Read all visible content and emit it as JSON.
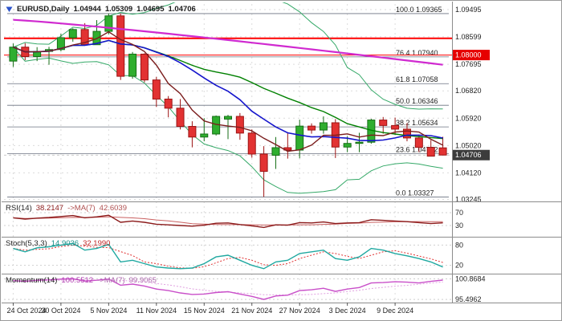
{
  "window": {
    "symbol": "EURUSD,Daily",
    "open": "1.04944",
    "high": "1.05309",
    "low": "1.04695",
    "close": "1.04706"
  },
  "colors": {
    "up": "#2fae2f",
    "up_border": "#156e15",
    "down": "#e23232",
    "down_border": "#9c1414",
    "sma_fast": "#7b1d1d",
    "sma_mid": "#1515cc",
    "sma_slow": "#008000",
    "band": "#35a968",
    "long_ma": "#d02ad0",
    "hline": "#ff0000",
    "fib": "#6b7280",
    "grid": "#dcdcdc",
    "axis_text": "#1f1f1f",
    "badge_price": "#3c3c3c",
    "badge_level": "#e60000",
    "rsi": "#8b1a1a",
    "rsi_ma": "#c96060",
    "stoch_k": "#1fa8a0",
    "stoch_d": "#e03232",
    "momentum": "#c94fc9",
    "momentum_ma": "#e0a0e0",
    "separator": "#8c8c8c"
  },
  "chart_data": [
    {
      "type": "candlestick",
      "title": "EURUSD Daily",
      "y_range": [
        1.0318,
        1.0968
      ],
      "y_ticks": [
        1.09495,
        1.08599,
        1.07695,
        1.0682,
        1.0592,
        1.0502,
        1.0412,
        1.03245
      ],
      "x_ticks": [
        {
          "i": 0,
          "label": "24 Oct 2024"
        },
        {
          "i": 4,
          "label": "30 Oct 2024"
        },
        {
          "i": 8,
          "label": "5 Nov 2024"
        },
        {
          "i": 12,
          "label": "11 Nov 2024"
        },
        {
          "i": 16,
          "label": "15 Nov 2024"
        },
        {
          "i": 20,
          "label": "21 Nov 2024"
        },
        {
          "i": 24,
          "label": "27 Nov 2024"
        },
        {
          "i": 28,
          "label": "3 Dec 2024"
        },
        {
          "i": 32,
          "label": "9 Dec 2024"
        }
      ],
      "candles": [
        [
          1.078,
          1.0838,
          1.0761,
          1.0826
        ],
        [
          1.0826,
          1.0839,
          1.0783,
          1.0795
        ],
        [
          1.0795,
          1.0826,
          1.078,
          1.0812
        ],
        [
          1.0812,
          1.0827,
          1.0768,
          1.0818
        ],
        [
          1.0818,
          1.087,
          1.0812,
          1.0857
        ],
        [
          1.0857,
          1.0888,
          1.0844,
          1.0884
        ],
        [
          1.0884,
          1.0905,
          1.0832,
          1.0834
        ],
        [
          1.0834,
          1.0915,
          1.0834,
          1.0878
        ],
        [
          1.0878,
          1.0937,
          1.0868,
          1.0929
        ],
        [
          1.0929,
          1.0937,
          1.0718,
          1.073
        ],
        [
          1.073,
          1.081,
          1.0722,
          1.0803
        ],
        [
          1.0803,
          1.0806,
          1.071,
          1.0718
        ],
        [
          1.0718,
          1.0728,
          1.0629,
          1.0655
        ],
        [
          1.0655,
          1.0665,
          1.0595,
          1.0625
        ],
        [
          1.0625,
          1.0655,
          1.0555,
          1.0565
        ],
        [
          1.0565,
          1.0582,
          1.0496,
          1.053
        ],
        [
          1.053,
          1.0592,
          1.0516,
          1.054
        ],
        [
          1.054,
          1.0601,
          1.0535,
          1.0598
        ],
        [
          1.0589,
          1.0603,
          1.0523,
          1.0598
        ],
        [
          1.0598,
          1.0609,
          1.0521,
          1.0543
        ],
        [
          1.0543,
          1.0555,
          1.0462,
          1.0474
        ],
        [
          1.0474,
          1.05,
          1.0333,
          1.0417
        ],
        [
          1.047,
          1.053,
          1.0425,
          1.0495
        ],
        [
          1.0495,
          1.0545,
          1.0459,
          1.0487
        ],
        [
          1.0487,
          1.0587,
          1.046,
          1.0566
        ],
        [
          1.0566,
          1.0575,
          1.0541,
          1.0553
        ],
        [
          1.0553,
          1.0598,
          1.0541,
          1.0577
        ],
        [
          1.0577,
          1.0589,
          1.0461,
          1.0497
        ],
        [
          1.0497,
          1.0533,
          1.048,
          1.0509
        ],
        [
          1.0509,
          1.0544,
          1.048,
          1.0513
        ],
        [
          1.0513,
          1.059,
          1.0508,
          1.0586
        ],
        [
          1.0586,
          1.0596,
          1.0541,
          1.0568
        ],
        [
          1.0568,
          1.0594,
          1.0537,
          1.0556
        ],
        [
          1.0556,
          1.0576,
          1.0516,
          1.0527
        ],
        [
          1.0527,
          1.0538,
          1.048,
          1.0496
        ],
        [
          1.0496,
          1.052,
          1.0466,
          1.0467
        ],
        [
          1.04944,
          1.05309,
          1.04695,
          1.04706
        ]
      ],
      "fib_levels": [
        {
          "pct": "100.0",
          "price": 1.09365
        },
        {
          "pct": "76.4",
          "price": 1.0794
        },
        {
          "pct": "61.8",
          "price": 1.07058
        },
        {
          "pct": "50.0",
          "price": 1.06346
        },
        {
          "pct": "38.2",
          "price": 1.05634
        },
        {
          "pct": "23.6",
          "price": 1.04752
        },
        {
          "pct": "0.0",
          "price": 1.03327
        }
      ],
      "hlines": [
        {
          "price": 1.0855,
          "width": 2
        },
        {
          "price": 1.08,
          "width": 1
        }
      ],
      "badges": [
        {
          "text": "1.08000",
          "price": 1.08,
          "color_key": "badge_level"
        },
        {
          "text": "1.04706",
          "price": 1.04706,
          "color_key": "badge_price"
        }
      ],
      "overlays": {
        "sma_fast_period": 5,
        "sma_mid_period": 12,
        "sma_slow_period": 20,
        "bollinger": {
          "period": 20,
          "dev": 2
        },
        "long_ma": {
          "start": 1.0916,
          "end": 1.0768,
          "exp": 1.15
        }
      },
      "current_price": 1.04706
    },
    {
      "type": "line",
      "name": "RSI(14)",
      "value": "38.2147",
      "ma_label": "->MA(7)",
      "ma_value": "42.6039",
      "ma_period": 7,
      "range": [
        0,
        100
      ],
      "levels": [
        {
          "v": 70,
          "label": "70"
        },
        {
          "v": 30,
          "label": "30"
        }
      ],
      "values": [
        54,
        50,
        53,
        55,
        58,
        61,
        54,
        57,
        62,
        40,
        44,
        40,
        34,
        32,
        30,
        28,
        31,
        37,
        38,
        33,
        29,
        24,
        32,
        31,
        39,
        38,
        41,
        36,
        38,
        39,
        48,
        46,
        44,
        42,
        39,
        36,
        38.21
      ]
    },
    {
      "type": "line",
      "name": "Stoch(5,3,3)",
      "value": "14.9036",
      "value2": "32.1990",
      "signal_period": 3,
      "range": [
        0,
        100
      ],
      "levels": [
        {
          "v": 80,
          "label": "80"
        },
        {
          "v": 20,
          "label": "20"
        }
      ],
      "values": [
        70,
        60,
        72,
        75,
        80,
        85,
        65,
        70,
        82,
        30,
        35,
        25,
        15,
        12,
        10,
        12,
        25,
        45,
        50,
        35,
        20,
        10,
        30,
        35,
        55,
        60,
        65,
        40,
        35,
        45,
        70,
        65,
        55,
        48,
        40,
        30,
        14.9
      ]
    },
    {
      "type": "line",
      "name": "Momentum(14)",
      "value": "100.5512",
      "ma_label": "->MA(7)",
      "ma_value": "99.9065",
      "ma_period": 7,
      "range": [
        95.1,
        101.8
      ],
      "levels": [
        {
          "v": 100.8684,
          "label": "100.8684"
        },
        {
          "v": 95.4962,
          "label": "95.4962"
        }
      ],
      "values": [
        100.4,
        100.2,
        100.5,
        100.6,
        100.8,
        100.9,
        100.3,
        100.5,
        100.8,
        99.2,
        99.5,
        99.0,
        98.2,
        97.8,
        97.2,
        96.8,
        96.9,
        97.3,
        97.5,
        96.9,
        96.3,
        95.5,
        96.4,
        96.6,
        97.8,
        98.0,
        98.4,
        97.6,
        98.2,
        98.6,
        99.8,
        99.9,
        100.1,
        100.0,
        99.8,
        100.2,
        100.55
      ]
    }
  ]
}
